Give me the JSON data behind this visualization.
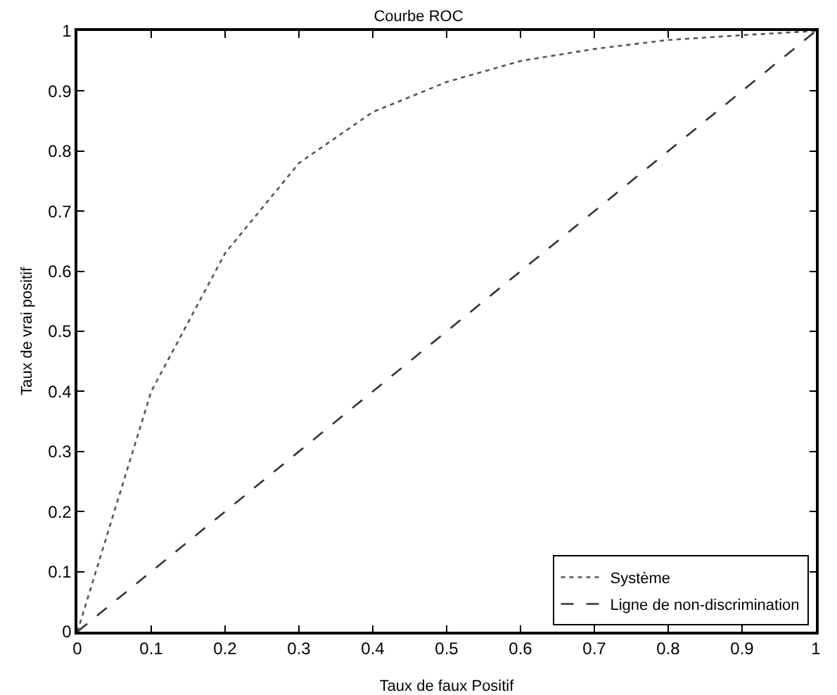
{
  "chart_data": {
    "type": "line",
    "title": "Courbe ROC",
    "xlabel": "Taux de faux Positif",
    "ylabel": "Taux de vrai positif",
    "x": [
      0,
      0.1,
      0.2,
      0.3,
      0.4,
      0.5,
      0.6,
      0.7,
      0.8,
      0.9,
      1
    ],
    "series": [
      {
        "name": "Système",
        "color": "#555555",
        "line_style": "dotted",
        "values": [
          0,
          0.4,
          0.63,
          0.78,
          0.865,
          0.915,
          0.95,
          0.97,
          0.985,
          0.993,
          1
        ]
      },
      {
        "name": "Ligne de non-discrimination",
        "color": "#333333",
        "line_style": "dashed",
        "x": [
          0,
          1
        ],
        "values": [
          0,
          1
        ]
      }
    ],
    "xlim": [
      0,
      1
    ],
    "ylim": [
      0,
      1
    ],
    "xticks": [
      0,
      0.1,
      0.2,
      0.3,
      0.4,
      0.5,
      0.6,
      0.7,
      0.8,
      0.9,
      1
    ],
    "yticks": [
      0,
      0.1,
      0.2,
      0.3,
      0.4,
      0.5,
      0.6,
      0.7,
      0.8,
      0.9,
      1
    ],
    "grid": false,
    "legend": "bottom right",
    "marker": "none"
  }
}
